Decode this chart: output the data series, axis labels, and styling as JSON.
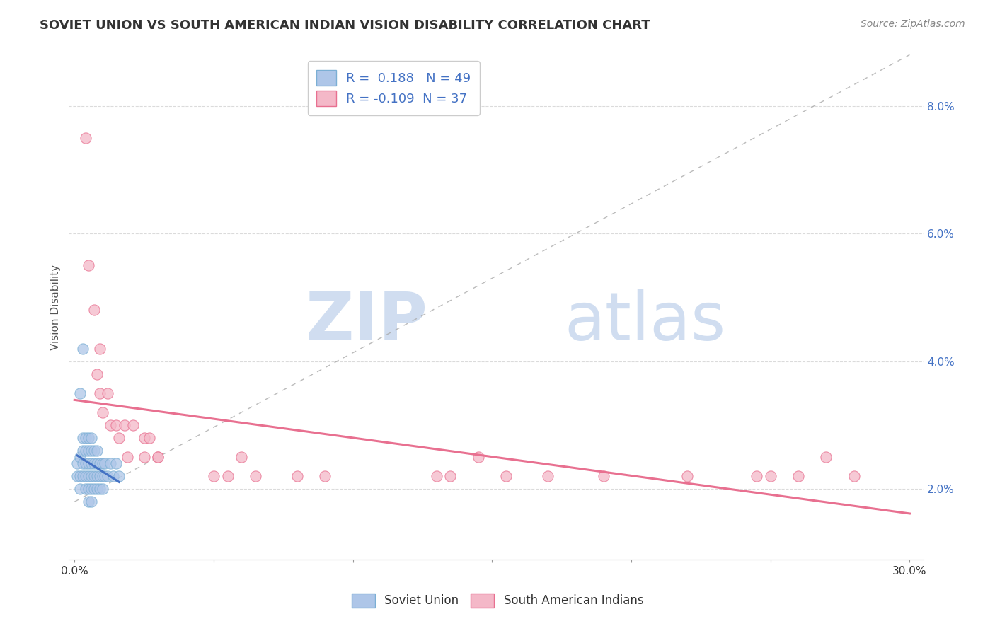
{
  "title": "SOVIET UNION VS SOUTH AMERICAN INDIAN VISION DISABILITY CORRELATION CHART",
  "source": "Source: ZipAtlas.com",
  "ylabel": "Vision Disability",
  "xlim": [
    -0.002,
    0.305
  ],
  "ylim": [
    0.009,
    0.088
  ],
  "xticks": [
    0.0,
    0.05,
    0.1,
    0.15,
    0.2,
    0.25,
    0.3
  ],
  "xticklabels": [
    "0.0%",
    "",
    "",
    "",
    "",
    "",
    "30.0%"
  ],
  "yticks": [
    0.02,
    0.04,
    0.06,
    0.08
  ],
  "yticklabels": [
    "2.0%",
    "4.0%",
    "6.0%",
    "8.0%"
  ],
  "grid_color": "#cccccc",
  "background_color": "#ffffff",
  "soviet_color": "#aec6e8",
  "soviet_edge_color": "#7bafd4",
  "pink_color": "#f4b8c8",
  "pink_edge_color": "#e87090",
  "blue_trend_color": "#4472c4",
  "pink_trend_color": "#e87090",
  "dashed_line_color": "#aaaaaa",
  "legend_text_color": "#4472c4",
  "R_soviet": "0.188",
  "N_soviet": "49",
  "R_south": "-0.109",
  "N_south": "37",
  "soviet_x": [
    0.001,
    0.001,
    0.002,
    0.002,
    0.002,
    0.003,
    0.003,
    0.003,
    0.003,
    0.004,
    0.004,
    0.004,
    0.004,
    0.004,
    0.005,
    0.005,
    0.005,
    0.005,
    0.005,
    0.005,
    0.006,
    0.006,
    0.006,
    0.006,
    0.006,
    0.006,
    0.007,
    0.007,
    0.007,
    0.007,
    0.008,
    0.008,
    0.008,
    0.008,
    0.009,
    0.009,
    0.009,
    0.01,
    0.01,
    0.01,
    0.011,
    0.011,
    0.012,
    0.013,
    0.014,
    0.015,
    0.016,
    0.002,
    0.003
  ],
  "soviet_y": [
    0.022,
    0.024,
    0.02,
    0.022,
    0.025,
    0.022,
    0.024,
    0.026,
    0.028,
    0.02,
    0.022,
    0.024,
    0.026,
    0.028,
    0.018,
    0.02,
    0.022,
    0.024,
    0.026,
    0.028,
    0.018,
    0.02,
    0.022,
    0.024,
    0.026,
    0.028,
    0.02,
    0.022,
    0.024,
    0.026,
    0.02,
    0.022,
    0.024,
    0.026,
    0.02,
    0.022,
    0.024,
    0.02,
    0.022,
    0.024,
    0.022,
    0.024,
    0.022,
    0.024,
    0.022,
    0.024,
    0.022,
    0.035,
    0.042
  ],
  "south_x": [
    0.004,
    0.005,
    0.007,
    0.008,
    0.009,
    0.009,
    0.01,
    0.012,
    0.013,
    0.015,
    0.016,
    0.018,
    0.019,
    0.021,
    0.025,
    0.025,
    0.027,
    0.03,
    0.03,
    0.05,
    0.055,
    0.06,
    0.065,
    0.08,
    0.09,
    0.13,
    0.135,
    0.145,
    0.155,
    0.17,
    0.19,
    0.22,
    0.245,
    0.25,
    0.26,
    0.27,
    0.28
  ],
  "south_y": [
    0.075,
    0.055,
    0.048,
    0.038,
    0.042,
    0.035,
    0.032,
    0.035,
    0.03,
    0.03,
    0.028,
    0.03,
    0.025,
    0.03,
    0.028,
    0.025,
    0.028,
    0.025,
    0.025,
    0.022,
    0.022,
    0.025,
    0.022,
    0.022,
    0.022,
    0.022,
    0.022,
    0.025,
    0.022,
    0.022,
    0.022,
    0.022,
    0.022,
    0.022,
    0.022,
    0.025,
    0.022
  ],
  "watermark_zip": "ZIP",
  "watermark_atlas": "atlas",
  "marker_size": 120
}
